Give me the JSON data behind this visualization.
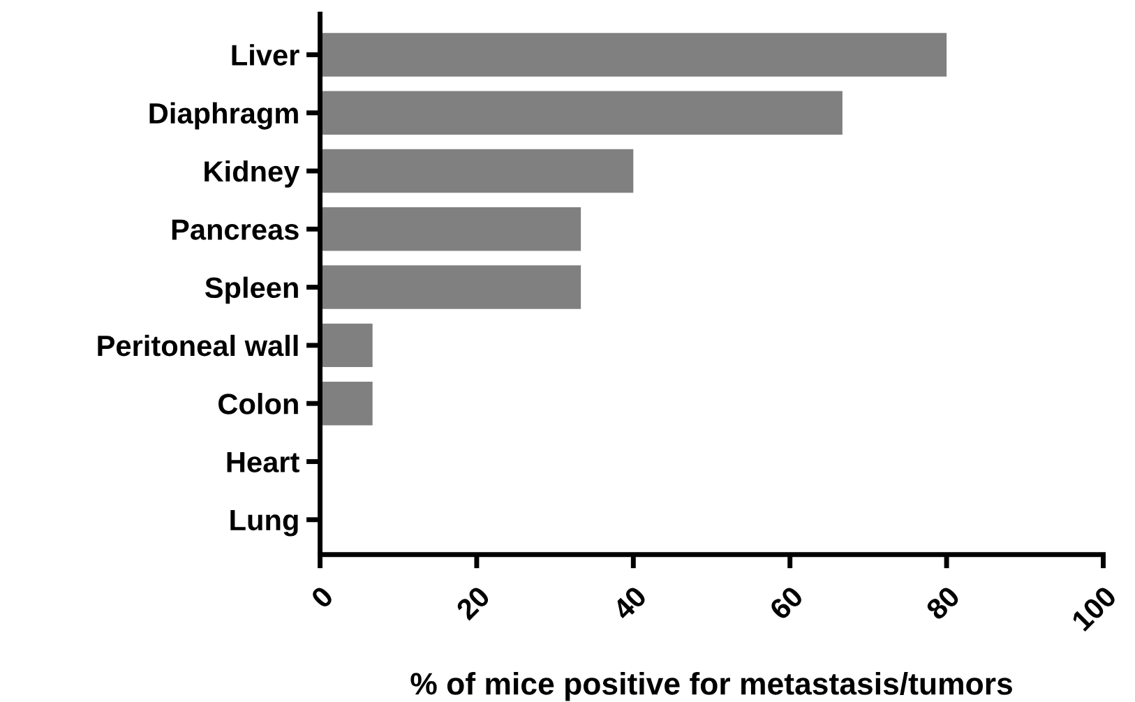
{
  "chart_data": {
    "type": "bar",
    "orientation": "horizontal",
    "xlabel": "% of mice positive for metastasis/tumors",
    "categories": [
      "Liver",
      "Diaphragm",
      "Kidney",
      "Pancreas",
      "Spleen",
      "Peritoneal wall",
      "Colon",
      "Heart",
      "Lung"
    ],
    "values": [
      80,
      66.7,
      40,
      33.3,
      33.3,
      6.7,
      6.7,
      0,
      0
    ],
    "color": "#808080",
    "xlim": [
      0,
      100
    ],
    "xticks": [
      0,
      20,
      40,
      60,
      80,
      100
    ],
    "grid": false,
    "legend": false
  }
}
